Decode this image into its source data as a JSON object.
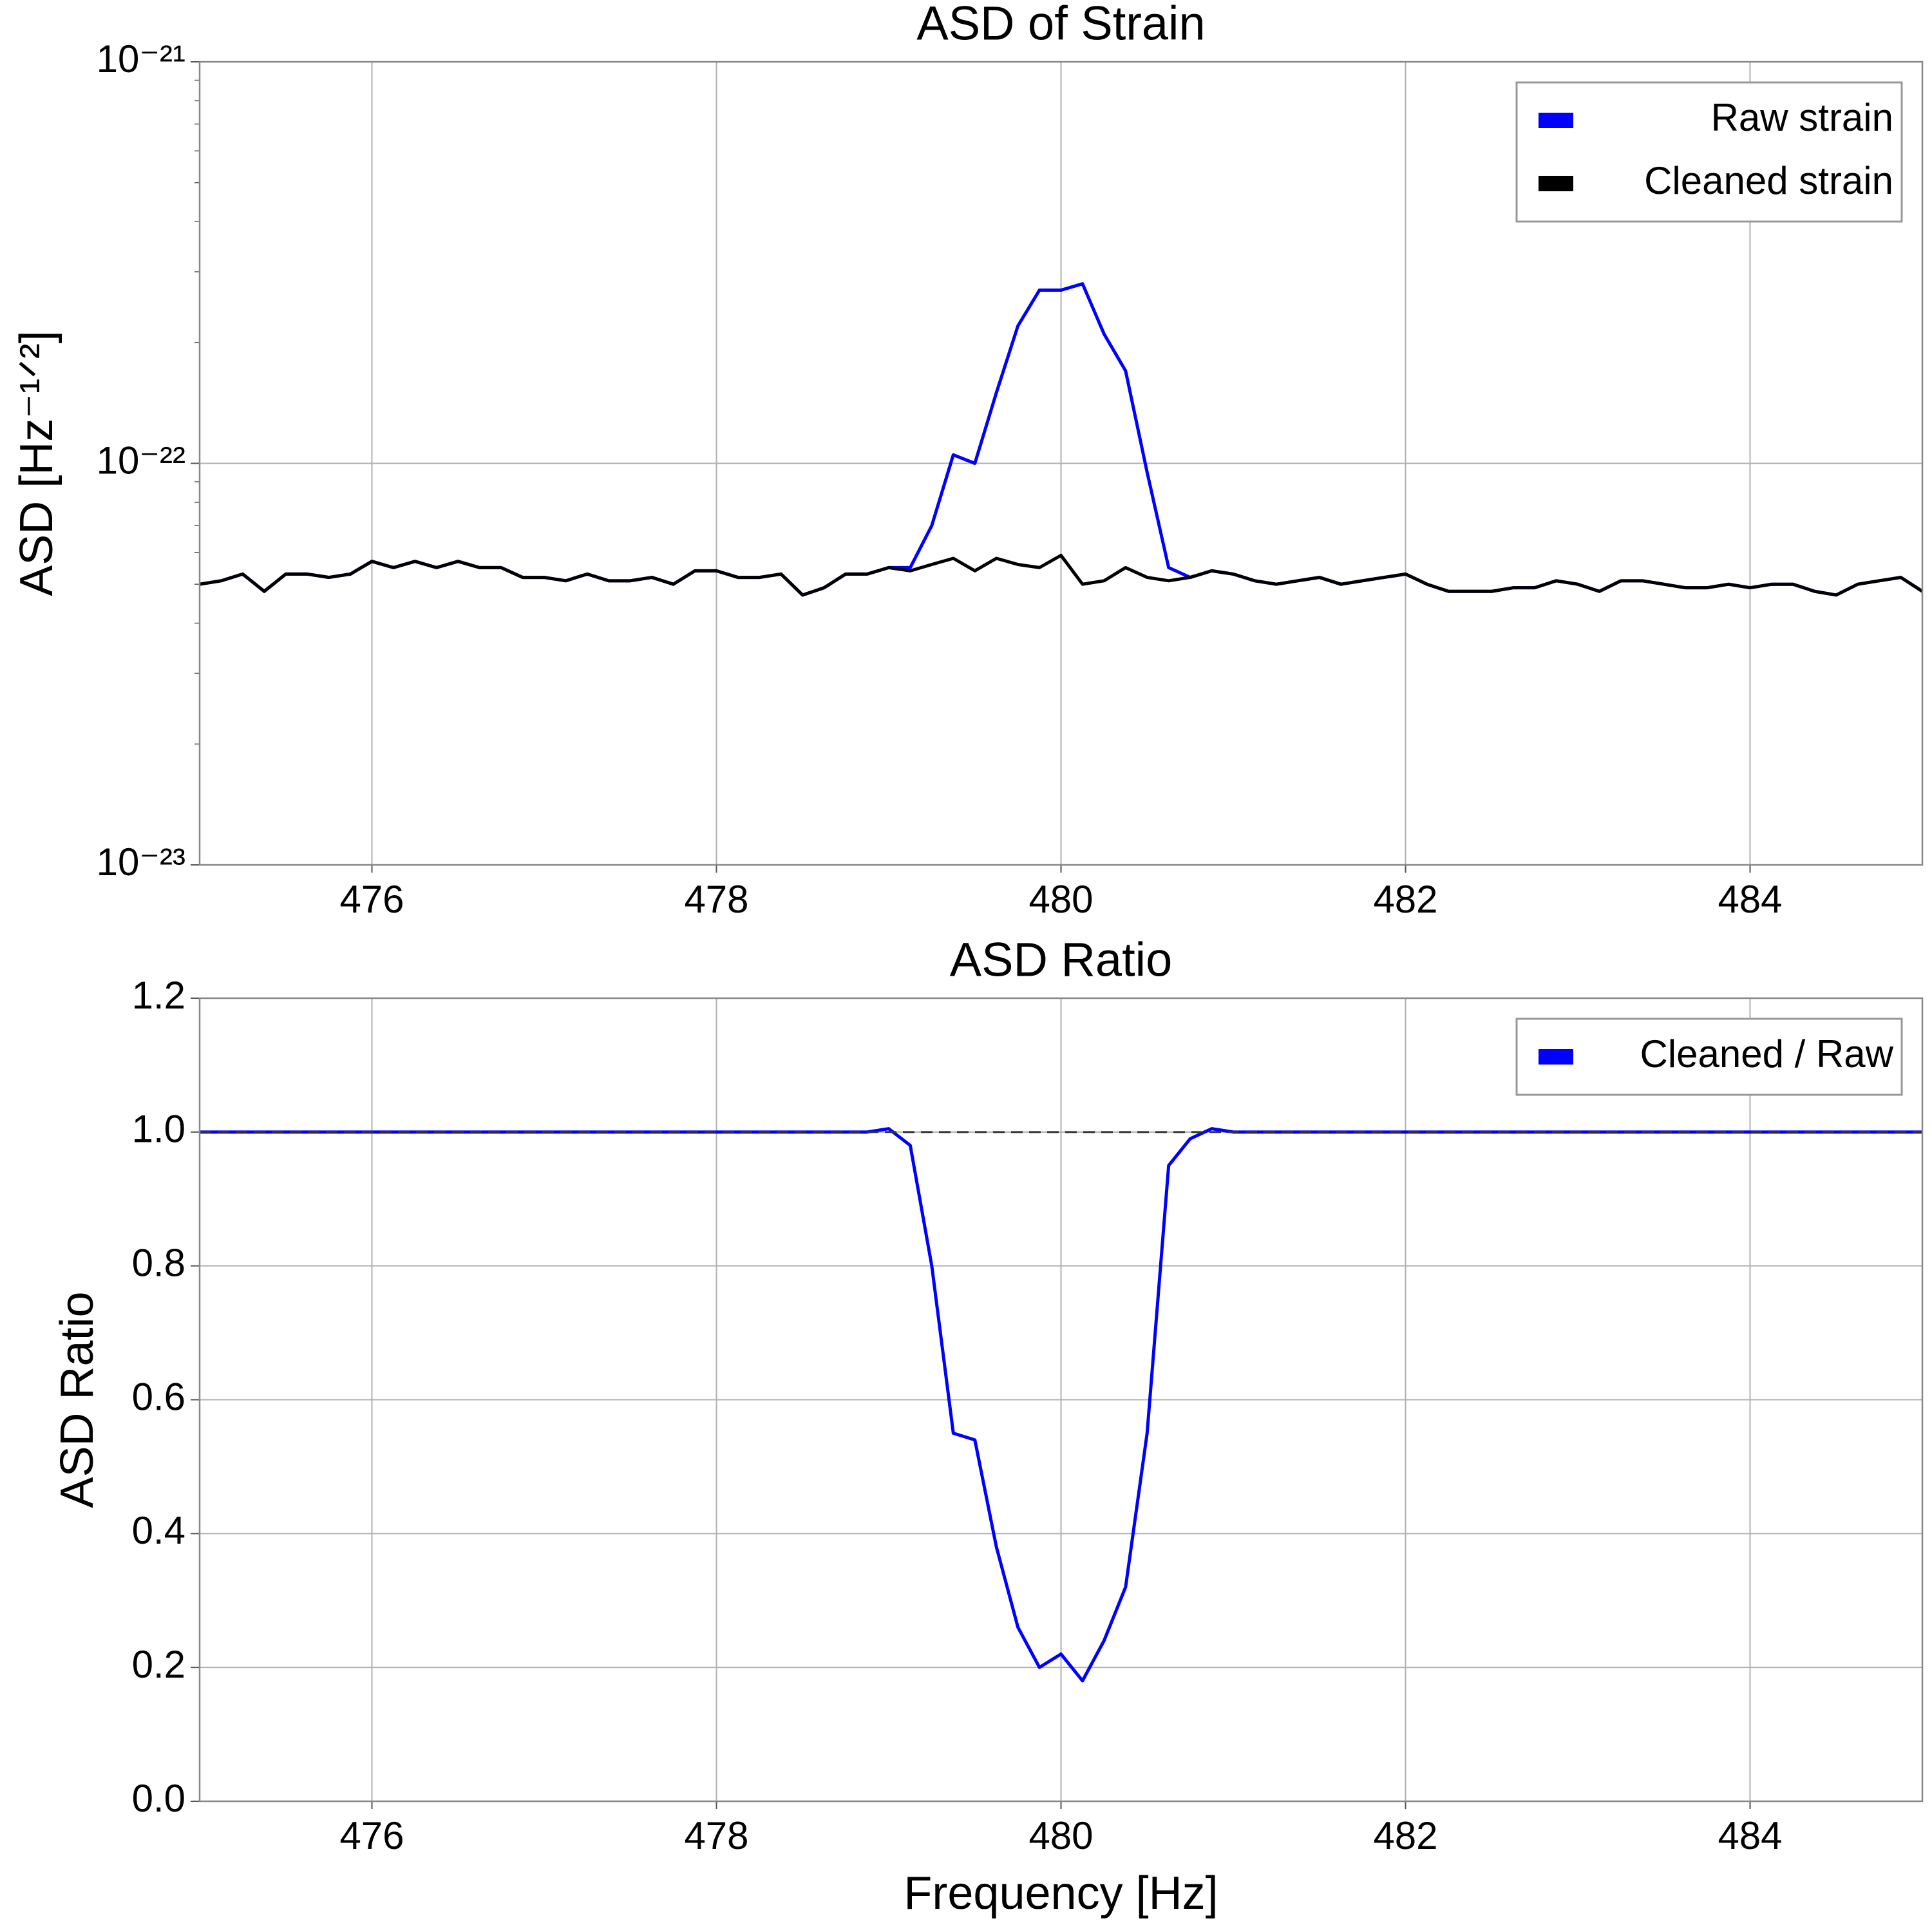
{
  "chart_data": [
    {
      "type": "line",
      "title": "ASD of Strain",
      "ylabel": "ASD [Hz⁻¹ᐟ²]",
      "log_scale": true,
      "grid": true,
      "legend": "upper right",
      "xlim": [
        475,
        485
      ],
      "xticks": [
        476,
        478,
        480,
        482,
        484
      ],
      "ylim": [
        1e-23,
        1e-21
      ],
      "yticks": [
        {
          "value": 1e-23,
          "label": "10⁻²³"
        },
        {
          "value": 1e-22,
          "label": "10⁻²²"
        },
        {
          "value": 1e-21,
          "label": "10⁻²¹"
        }
      ],
      "x": [
        475,
        475.125,
        475.25,
        475.375,
        475.5,
        475.625,
        475.75,
        475.875,
        476,
        476.125,
        476.25,
        476.375,
        476.5,
        476.625,
        476.75,
        476.875,
        477,
        477.125,
        477.25,
        477.375,
        477.5,
        477.625,
        477.75,
        477.875,
        478,
        478.125,
        478.25,
        478.375,
        478.5,
        478.625,
        478.75,
        478.875,
        479,
        479.125,
        479.25,
        479.375,
        479.5,
        479.625,
        479.75,
        479.875,
        480,
        480.125,
        480.25,
        480.375,
        480.5,
        480.625,
        480.75,
        480.875,
        481,
        481.125,
        481.25,
        481.375,
        481.5,
        481.625,
        481.75,
        481.875,
        482,
        482.125,
        482.25,
        482.375,
        482.5,
        482.625,
        482.75,
        482.875,
        483,
        483.125,
        483.25,
        483.375,
        483.5,
        483.625,
        483.75,
        483.875,
        484,
        484.125,
        484.25,
        484.375,
        484.5,
        484.625,
        484.75,
        484.875,
        485
      ],
      "series": [
        {
          "name": "Raw strain",
          "color": "#0000ff",
          "values": [
            5e-23,
            5.1e-23,
            5.3e-23,
            4.8e-23,
            5.3e-23,
            5.3e-23,
            5.2e-23,
            5.3e-23,
            5.7e-23,
            5.5e-23,
            5.7e-23,
            5.5e-23,
            5.7e-23,
            5.5e-23,
            5.5e-23,
            5.2e-23,
            5.2e-23,
            5.1e-23,
            5.3e-23,
            5.1e-23,
            5.1e-23,
            5.2e-23,
            5e-23,
            5.4e-23,
            5.4e-23,
            5.2e-23,
            5.2e-23,
            5.3e-23,
            4.7e-23,
            4.9e-23,
            5.3e-23,
            5.3e-23,
            5.5e-23,
            5.5e-23,
            7e-23,
            1.05e-22,
            1e-22,
            1.5e-22,
            2.2e-22,
            2.7e-22,
            2.7e-22,
            2.8e-22,
            2.1e-22,
            1.7e-22,
            9.5e-23,
            5.5e-23,
            5.2e-23,
            5.4e-23,
            5.3e-23,
            5.1e-23,
            5e-23,
            5.1e-23,
            5.2e-23,
            5e-23,
            5.1e-23,
            5.2e-23,
            5.3e-23,
            5e-23,
            4.8e-23,
            4.8e-23,
            4.8e-23,
            4.9e-23,
            4.9e-23,
            5.1e-23,
            5e-23,
            4.8e-23,
            5.1e-23,
            5.1e-23,
            5e-23,
            4.9e-23,
            4.9e-23,
            5e-23,
            4.9e-23,
            5e-23,
            5e-23,
            4.8e-23,
            4.7e-23,
            5e-23,
            5.1e-23,
            5.2e-23,
            4.8e-23
          ]
        },
        {
          "name": "Cleaned strain",
          "color": "#000000",
          "values": [
            5e-23,
            5.1e-23,
            5.3e-23,
            4.8e-23,
            5.3e-23,
            5.3e-23,
            5.2e-23,
            5.3e-23,
            5.7e-23,
            5.5e-23,
            5.7e-23,
            5.5e-23,
            5.7e-23,
            5.5e-23,
            5.5e-23,
            5.2e-23,
            5.2e-23,
            5.1e-23,
            5.3e-23,
            5.1e-23,
            5.1e-23,
            5.2e-23,
            5e-23,
            5.4e-23,
            5.4e-23,
            5.2e-23,
            5.2e-23,
            5.3e-23,
            4.7e-23,
            4.9e-23,
            5.3e-23,
            5.3e-23,
            5.5e-23,
            5.4e-23,
            5.6e-23,
            5.8e-23,
            5.4e-23,
            5.8e-23,
            5.6e-23,
            5.5e-23,
            5.9e-23,
            5e-23,
            5.1e-23,
            5.5e-23,
            5.2e-23,
            5.1e-23,
            5.2e-23,
            5.4e-23,
            5.3e-23,
            5.1e-23,
            5e-23,
            5.1e-23,
            5.2e-23,
            5e-23,
            5.1e-23,
            5.2e-23,
            5.3e-23,
            5e-23,
            4.8e-23,
            4.8e-23,
            4.8e-23,
            4.9e-23,
            4.9e-23,
            5.1e-23,
            5e-23,
            4.8e-23,
            5.1e-23,
            5.1e-23,
            5e-23,
            4.9e-23,
            4.9e-23,
            5e-23,
            4.9e-23,
            5e-23,
            5e-23,
            4.8e-23,
            4.7e-23,
            5e-23,
            5.1e-23,
            5.2e-23,
            4.8e-23
          ]
        }
      ]
    },
    {
      "type": "line",
      "title": "ASD Ratio",
      "ylabel": "ASD Ratio",
      "xlabel": "Frequency [Hz]",
      "log_scale": false,
      "grid": true,
      "legend": "upper right",
      "xlim": [
        475,
        485
      ],
      "xticks": [
        476,
        478,
        480,
        482,
        484
      ],
      "ylim": [
        0,
        1.2
      ],
      "yticks": [
        {
          "value": 0,
          "label": "0.0"
        },
        0.2,
        0.4,
        0.6,
        0.8,
        {
          "value": 1,
          "label": "1.0"
        },
        1.2
      ],
      "hline": {
        "value": 1,
        "color": "#333333",
        "dash": true
      },
      "x": [
        475,
        475.125,
        475.25,
        475.375,
        475.5,
        475.625,
        475.75,
        475.875,
        476,
        476.125,
        476.25,
        476.375,
        476.5,
        476.625,
        476.75,
        476.875,
        477,
        477.125,
        477.25,
        477.375,
        477.5,
        477.625,
        477.75,
        477.875,
        478,
        478.125,
        478.25,
        478.375,
        478.5,
        478.625,
        478.75,
        478.875,
        479,
        479.125,
        479.25,
        479.375,
        479.5,
        479.625,
        479.75,
        479.875,
        480,
        480.125,
        480.25,
        480.375,
        480.5,
        480.625,
        480.75,
        480.875,
        481,
        481.125,
        481.25,
        481.375,
        481.5,
        481.625,
        481.75,
        481.875,
        482,
        482.125,
        482.25,
        482.375,
        482.5,
        482.625,
        482.75,
        482.875,
        483,
        483.125,
        483.25,
        483.375,
        483.5,
        483.625,
        483.75,
        483.875,
        484,
        484.125,
        484.25,
        484.375,
        484.5,
        484.625,
        484.75,
        484.875,
        485
      ],
      "series": [
        {
          "name": "Cleaned / Raw",
          "color": "#0000ff",
          "values": [
            1,
            1,
            1,
            1,
            1,
            1,
            1,
            1,
            1,
            1,
            1,
            1,
            1,
            1,
            1,
            1,
            1,
            1,
            1,
            1,
            1,
            1,
            1,
            1,
            1,
            1,
            1,
            1,
            1,
            1,
            1,
            1,
            1.005,
            0.98,
            0.8,
            0.55,
            0.54,
            0.38,
            0.26,
            0.2,
            0.22,
            0.18,
            0.24,
            0.32,
            0.55,
            0.95,
            0.99,
            1.005,
            1,
            1,
            1,
            1,
            1,
            1,
            1,
            1,
            1,
            1,
            1,
            1,
            1,
            1,
            1,
            1,
            1,
            1,
            1,
            1,
            1,
            1,
            1,
            1,
            1,
            1,
            1,
            1,
            1,
            1,
            1,
            1,
            1
          ]
        }
      ]
    }
  ]
}
